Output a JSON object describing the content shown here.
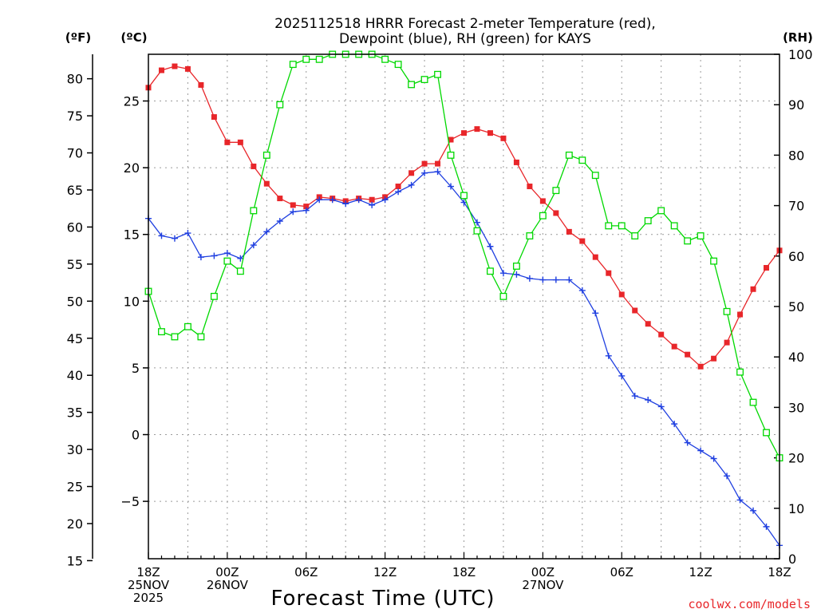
{
  "chart_data": {
    "type": "line",
    "title_line1": "2025112518 HRRR Forecast 2-meter Temperature (red),",
    "title_line2": "Dewpoint (blue), RH (green) for KAYS",
    "unit_f": "(ºF)",
    "unit_c": "(ºC)",
    "unit_rh": "(RH)",
    "xlabel": "Forecast Time (UTC)",
    "credit": "coolwx.com/models",
    "x_range_hours": [
      0,
      48
    ],
    "ylim_c": [
      -9.3,
      28.5
    ],
    "ylim_rh": [
      0,
      100
    ],
    "yticks_c": [
      {
        "v": 25,
        "label": "25"
      },
      {
        "v": 20,
        "label": "20"
      },
      {
        "v": 15,
        "label": "15"
      },
      {
        "v": 10,
        "label": "10"
      },
      {
        "v": 5,
        "label": "5"
      },
      {
        "v": 0,
        "label": "0"
      },
      {
        "v": -5,
        "label": "−5"
      }
    ],
    "yticks_f": [
      {
        "v": 80,
        "label": "80"
      },
      {
        "v": 75,
        "label": "75"
      },
      {
        "v": 70,
        "label": "70"
      },
      {
        "v": 65,
        "label": "65"
      },
      {
        "v": 60,
        "label": "60"
      },
      {
        "v": 55,
        "label": "55"
      },
      {
        "v": 50,
        "label": "50"
      },
      {
        "v": 45,
        "label": "45"
      },
      {
        "v": 40,
        "label": "40"
      },
      {
        "v": 35,
        "label": "35"
      },
      {
        "v": 30,
        "label": "30"
      },
      {
        "v": 25,
        "label": "25"
      },
      {
        "v": 20,
        "label": "20"
      },
      {
        "v": 15,
        "label": "15"
      }
    ],
    "yticks_rh": [
      {
        "v": 100,
        "label": "100"
      },
      {
        "v": 90,
        "label": "90"
      },
      {
        "v": 80,
        "label": "80"
      },
      {
        "v": 70,
        "label": "70"
      },
      {
        "v": 60,
        "label": "60"
      },
      {
        "v": 50,
        "label": "50"
      },
      {
        "v": 40,
        "label": "40"
      },
      {
        "v": 30,
        "label": "30"
      },
      {
        "v": 20,
        "label": "20"
      },
      {
        "v": 10,
        "label": "10"
      },
      {
        "v": 0,
        "label": "0"
      }
    ],
    "xticks": [
      {
        "h": 0,
        "lines": [
          "18Z",
          "25NOV",
          "2025"
        ]
      },
      {
        "h": 6,
        "lines": [
          "00Z",
          "26NOV"
        ]
      },
      {
        "h": 12,
        "lines": [
          "06Z"
        ]
      },
      {
        "h": 18,
        "lines": [
          "12Z"
        ]
      },
      {
        "h": 24,
        "lines": [
          "18Z"
        ]
      },
      {
        "h": 30,
        "lines": [
          "00Z",
          "27NOV"
        ]
      },
      {
        "h": 36,
        "lines": [
          "06Z"
        ]
      },
      {
        "h": 42,
        "lines": [
          "12Z"
        ]
      },
      {
        "h": 48,
        "lines": [
          "18Z"
        ]
      }
    ],
    "series": [
      {
        "name": "Temperature",
        "unit": "C",
        "color": "#e8262a",
        "marker": "filled-square",
        "values": [
          26.0,
          27.3,
          27.6,
          27.4,
          26.2,
          23.8,
          21.9,
          21.9,
          20.1,
          18.8,
          17.7,
          17.2,
          17.1,
          17.8,
          17.7,
          17.5,
          17.7,
          17.6,
          17.8,
          18.6,
          19.6,
          20.3,
          20.3,
          22.1,
          22.6,
          22.9,
          22.6,
          22.2,
          20.4,
          18.6,
          17.5,
          16.6,
          15.2,
          14.5,
          13.3,
          12.1,
          10.5,
          9.3,
          8.3,
          7.5,
          6.6,
          6.0,
          5.1,
          5.7,
          6.9,
          9.0,
          10.9,
          12.5,
          13.8
        ]
      },
      {
        "name": "Dewpoint",
        "unit": "C",
        "color": "#1f3fe0",
        "marker": "plus",
        "values": [
          16.2,
          14.9,
          14.7,
          15.1,
          13.3,
          13.4,
          13.6,
          13.2,
          14.2,
          15.2,
          16.0,
          16.7,
          16.8,
          17.6,
          17.6,
          17.3,
          17.6,
          17.2,
          17.6,
          18.2,
          18.7,
          19.6,
          19.7,
          18.6,
          17.4,
          15.9,
          14.1,
          12.1,
          12.0,
          11.7,
          11.6,
          11.6,
          11.6,
          10.8,
          9.1,
          5.9,
          4.4,
          2.9,
          2.6,
          2.1,
          0.8,
          -0.6,
          -1.2,
          -1.8,
          -3.1,
          -4.9,
          -5.7,
          -6.9,
          -8.3
        ]
      },
      {
        "name": "RH",
        "unit": "%",
        "color": "#00d800",
        "marker": "open-square",
        "values": [
          53,
          45,
          44,
          46,
          44,
          52,
          59,
          57,
          69,
          80,
          90,
          98,
          99,
          99,
          100,
          100,
          100,
          100,
          99,
          98,
          94,
          95,
          96,
          80,
          72,
          65,
          57,
          52,
          58,
          64,
          68,
          73,
          80,
          79,
          76,
          66,
          66,
          64,
          67,
          69,
          66,
          63,
          64,
          59,
          49,
          37,
          31,
          25,
          20
        ]
      }
    ]
  }
}
